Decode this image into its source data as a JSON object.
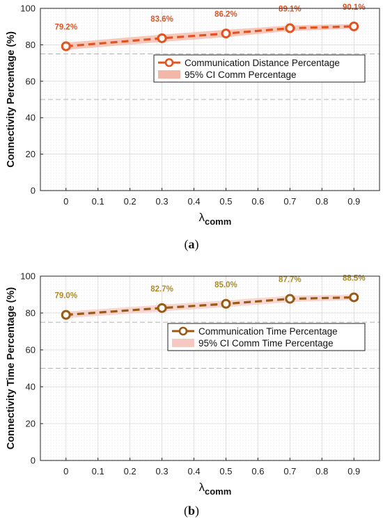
{
  "chart_data": [
    {
      "type": "line",
      "panel_label": "(a)",
      "panel_label_parts": {
        "open": "(",
        "letter": "a",
        "close": ")"
      },
      "xlabel": {
        "symbol": "λ",
        "subscript": "comm"
      },
      "ylabel": "Connectivity Percentage (%)",
      "x_ticks": [
        "0",
        "0.1",
        "0.2",
        "0.3",
        "0.4",
        "0.5",
        "0.6",
        "0.7",
        "0.8",
        "0.9"
      ],
      "y_ticks": [
        "0",
        "20",
        "40",
        "60",
        "80",
        "100"
      ],
      "xlim": [
        -0.08,
        0.98
      ],
      "ylim": [
        0,
        100
      ],
      "grid": true,
      "reference_lines": [
        50,
        75
      ],
      "legend_position": "upper-right",
      "series": [
        {
          "name": "Communication Distance Percentage",
          "x": [
            0,
            0.3,
            0.5,
            0.7,
            0.9
          ],
          "values": [
            79.2,
            83.6,
            86.2,
            89.1,
            90.1
          ],
          "data_labels": [
            "79.2%",
            "83.6%",
            "86.2%",
            "89.1%",
            "90.1%"
          ],
          "color": "#e2531f"
        }
      ],
      "confidence_band": {
        "name": "95% CI Comm Percentage",
        "lower": [
          77.2,
          81.6,
          84.2,
          87.6,
          88.8
        ],
        "upper": [
          81.2,
          85.6,
          88.2,
          90.6,
          91.4
        ],
        "color": "#f4b6a6"
      }
    },
    {
      "type": "line",
      "panel_label": "(b)",
      "panel_label_parts": {
        "open": "(",
        "letter": "b",
        "close": ")"
      },
      "xlabel": {
        "symbol": "λ",
        "subscript": "comm"
      },
      "ylabel": "Connectivity Time Percentage (%)",
      "x_ticks": [
        "0",
        "0.1",
        "0.2",
        "0.3",
        "0.4",
        "0.5",
        "0.6",
        "0.7",
        "0.8",
        "0.9"
      ],
      "y_ticks": [
        "0",
        "20",
        "40",
        "60",
        "80",
        "100"
      ],
      "xlim": [
        -0.08,
        0.98
      ],
      "ylim": [
        0,
        100
      ],
      "grid": true,
      "reference_lines": [
        50,
        75
      ],
      "legend_position": "upper-right",
      "series": [
        {
          "name": "Communication Time Percentage",
          "x": [
            0,
            0.3,
            0.5,
            0.7,
            0.9
          ],
          "values": [
            79.0,
            82.7,
            85.0,
            87.7,
            88.5
          ],
          "data_labels": [
            "79.0%",
            "82.7%",
            "85.0%",
            "87.7%",
            "88.5%"
          ],
          "color": "#9a5a14"
        }
      ],
      "confidence_band": {
        "name": "95% CI Comm Time Percentage",
        "lower": [
          77.2,
          80.9,
          83.2,
          86.0,
          87.0
        ],
        "upper": [
          80.8,
          84.5,
          86.8,
          89.4,
          90.0
        ],
        "color": "#f6c8c2"
      }
    }
  ],
  "style": {
    "axis_color": "#222222",
    "grid_color": "#d9d9d9",
    "reference_line_color": "#b3b3b3",
    "background_dot_color": "#cfcfcf",
    "label_colors": [
      "#e2531f",
      "#b08a1e"
    ],
    "marker_fill": "#ffffff"
  }
}
